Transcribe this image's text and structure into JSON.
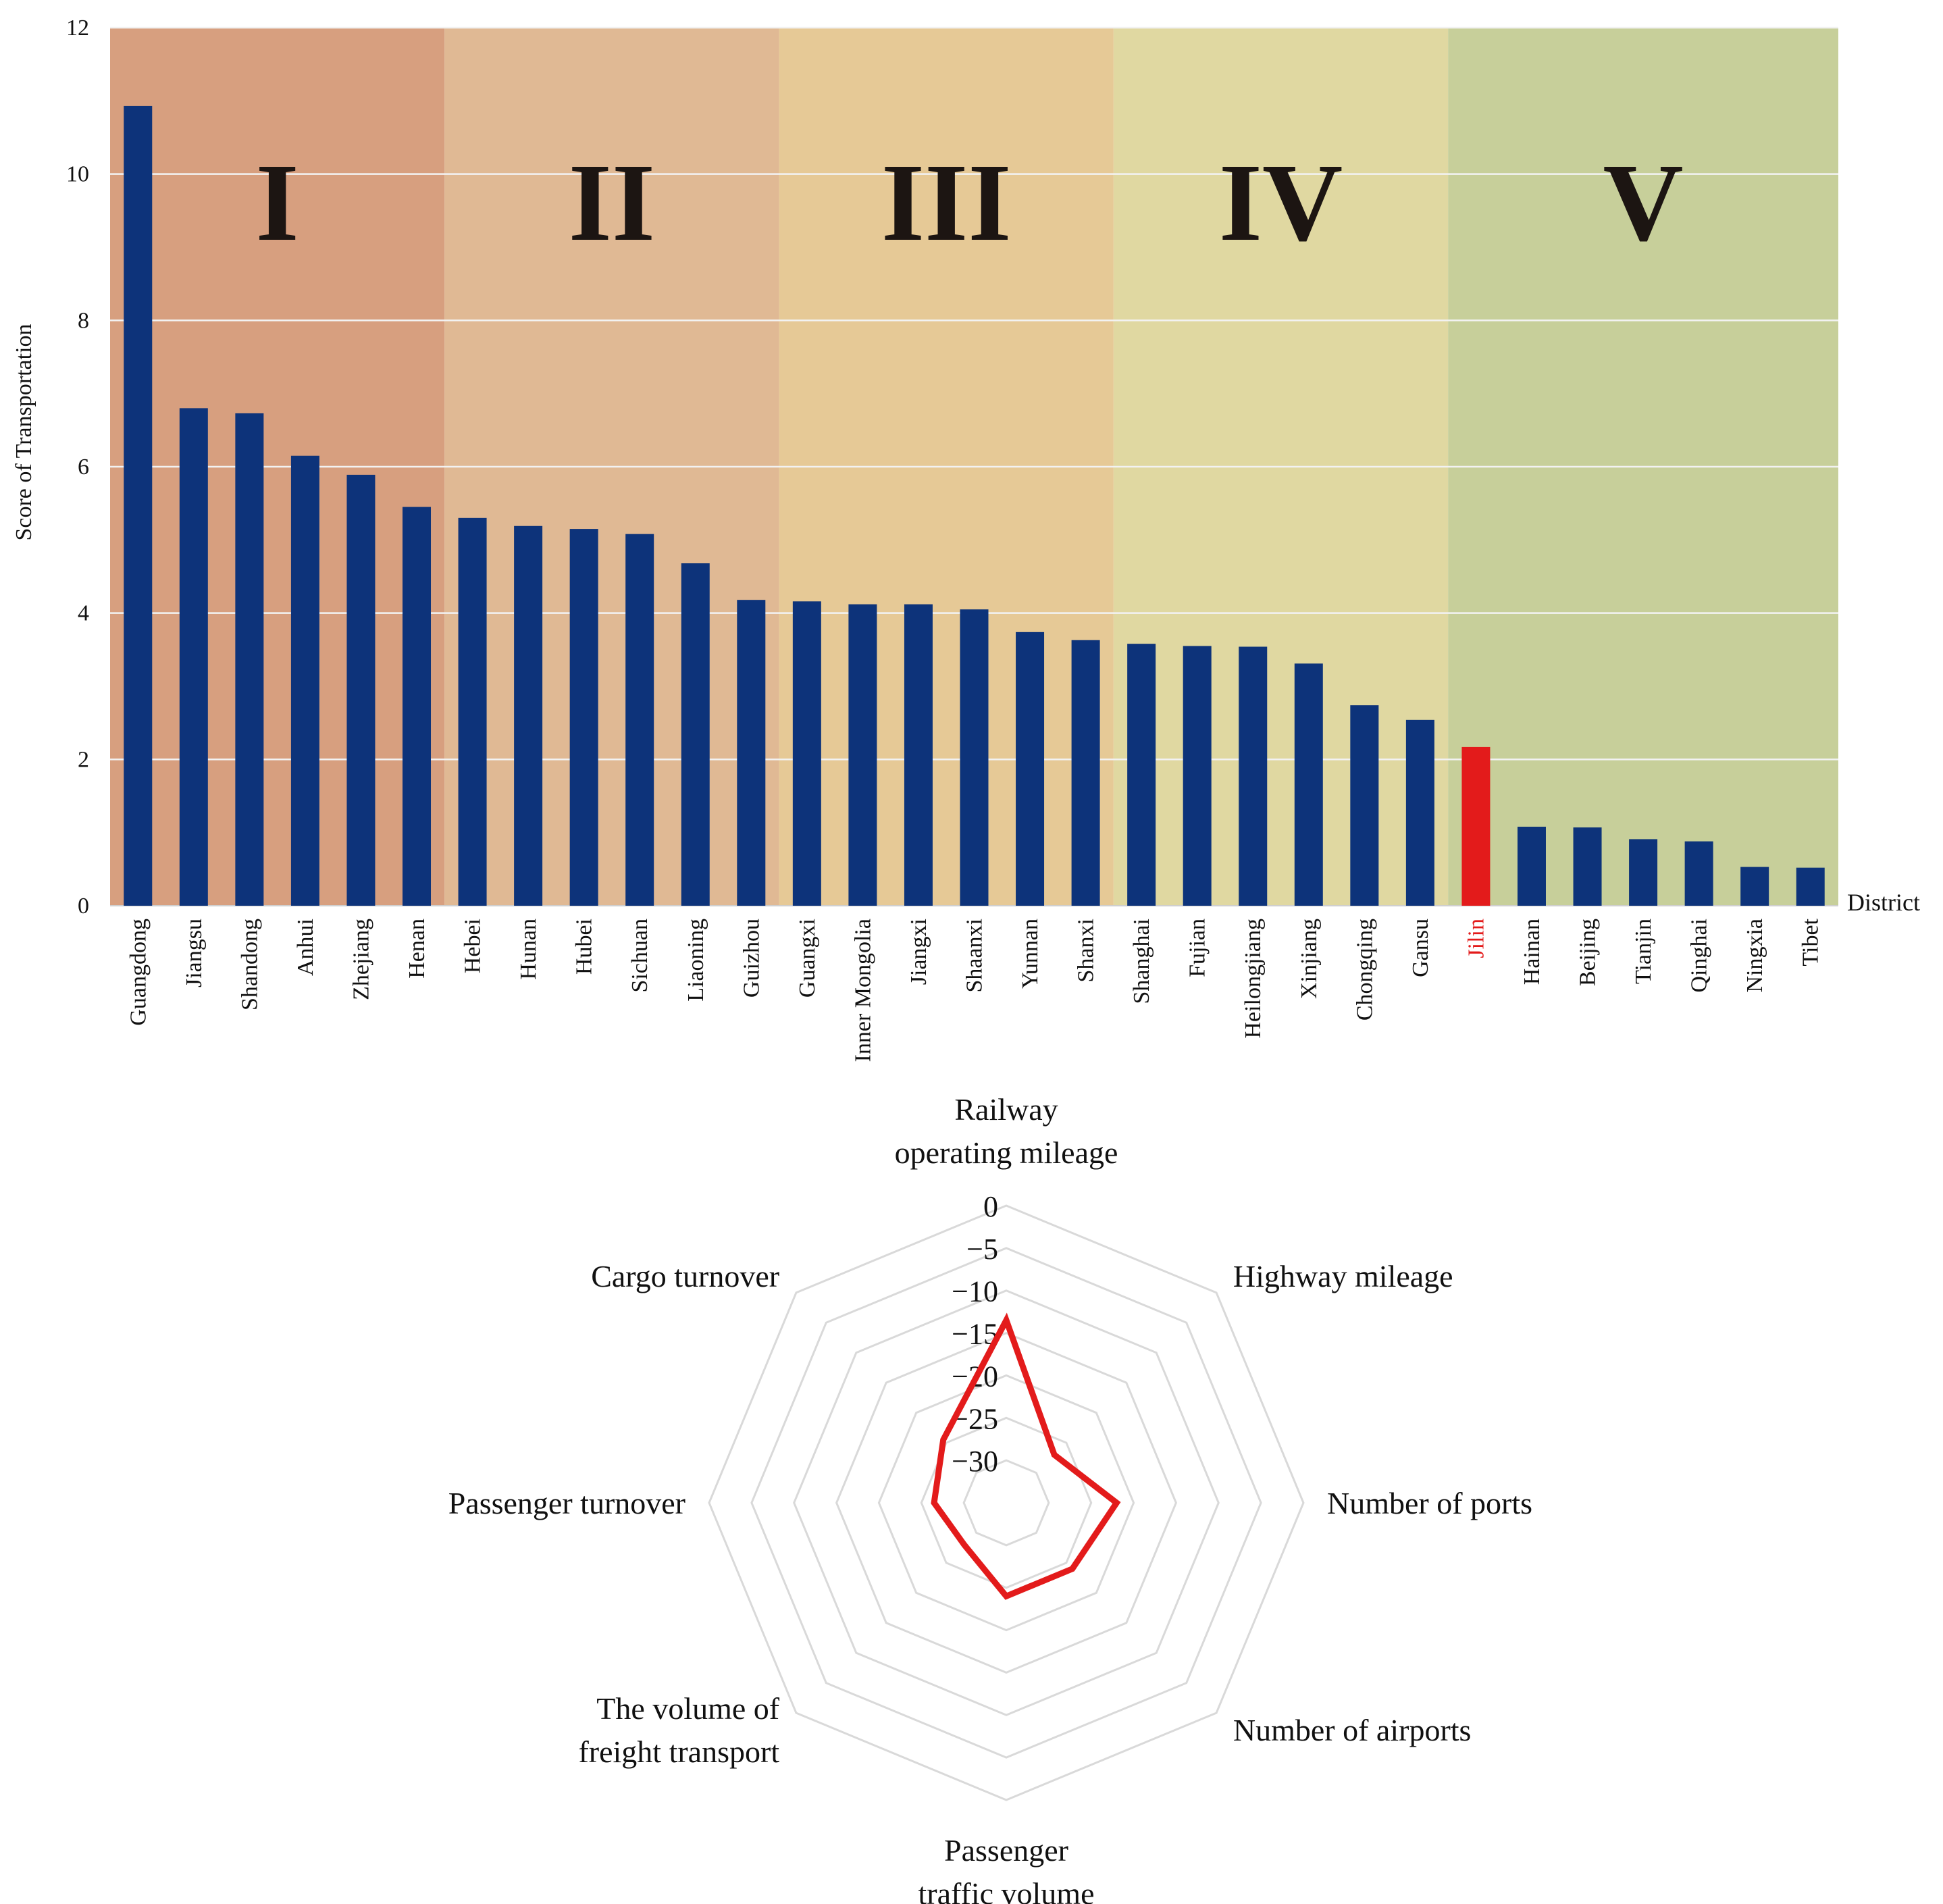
{
  "chart_data": [
    {
      "type": "bar",
      "ylabel": "Score of Transportation",
      "xlabel": "District",
      "ylim": [
        0,
        12
      ],
      "yticks": [
        0,
        2,
        4,
        6,
        8,
        10,
        12
      ],
      "grid": true,
      "categories": [
        "Guangdong",
        "Jiangsu",
        "Shandong",
        "Anhui",
        "Zhejiang",
        "Henan",
        "Hebei",
        "Hunan",
        "Hubei",
        "Sichuan",
        "Liaoning",
        "Guizhou",
        "Guangxi",
        "Inner Mongolia",
        "Jiangxi",
        "Shaanxi",
        "Yunnan",
        "Shanxi",
        "Shanghai",
        "Fujian",
        "Heilongjiang",
        "Xinjiang",
        "Chongqing",
        "Gansu",
        "Jilin",
        "Hainan",
        "Beijing",
        "Tianjin",
        "Qinghai",
        "Ningxia",
        "Tibet"
      ],
      "values": [
        10.93,
        6.8,
        6.73,
        6.15,
        5.89,
        5.45,
        5.3,
        5.19,
        5.15,
        5.08,
        4.68,
        4.18,
        4.16,
        4.12,
        4.12,
        4.05,
        3.74,
        3.63,
        3.58,
        3.55,
        3.54,
        3.31,
        2.74,
        2.54,
        2.17,
        1.08,
        1.07,
        0.91,
        0.88,
        0.53,
        0.52
      ],
      "bar_color": "#0d337a",
      "highlight": {
        "category": "Jilin",
        "color": "#e31b1b"
      },
      "groups": [
        {
          "label": "I",
          "start": 0,
          "end": 5,
          "color": "#d79f7f"
        },
        {
          "label": "II",
          "start": 6,
          "end": 11,
          "color": "#e0b994"
        },
        {
          "label": "III",
          "start": 12,
          "end": 17,
          "color": "#e6c996"
        },
        {
          "label": "IV",
          "start": 18,
          "end": 23,
          "color": "#e0d8a1"
        },
        {
          "label": "V",
          "start": 24,
          "end": 30,
          "color": "#c7cf9a"
        }
      ]
    },
    {
      "type": "radar",
      "axes": [
        "Railway operating mileage",
        "Highway mileage",
        "Number of ports",
        "Number of airports",
        "Passenger traffic volume",
        "The volume of freight transport",
        "Passenger turnover",
        "Cargo turnover"
      ],
      "ticks": [
        "0",
        "−5",
        "−10",
        "−15",
        "−20",
        "−25",
        "−30"
      ],
      "rmin": -35,
      "rmax": 0,
      "series": [
        {
          "values": [
            -13.5,
            -27,
            -22,
            -24,
            -24,
            -28,
            -26.5,
            -24.5
          ],
          "color": "#e31b1b"
        }
      ]
    }
  ]
}
